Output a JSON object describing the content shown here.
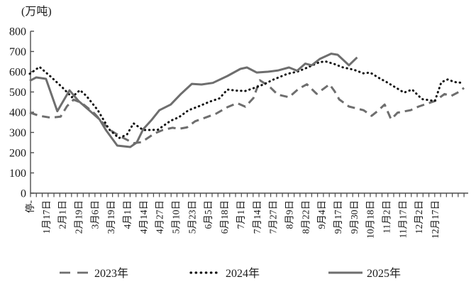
{
  "y_axis": {
    "title": "(万吨)",
    "ticks": [
      "0",
      "100",
      "200",
      "300",
      "400",
      "500",
      "600",
      "700",
      "800"
    ],
    "min": 0,
    "max": 800
  },
  "x_axis": {
    "labels": [
      "停-",
      "1月17日",
      "2月1日",
      "2月19日",
      "3月6日",
      "3月19日",
      "4月1日",
      "4月14日",
      "4月27日",
      "5月10日",
      "5月23日",
      "6月5日",
      "6月18日",
      "7月1日",
      "7月14日",
      "7月27日",
      "8月9日",
      "8月22日",
      "9月4日",
      "9月17日",
      "9月30日",
      "10月18日",
      "11月2日",
      "11月17日",
      "12月2日",
      "12月17日"
    ]
  },
  "legend": {
    "items": [
      {
        "label": "2023年",
        "style": "dashed",
        "color": "#6e6e6e"
      },
      {
        "label": "2024年",
        "style": "dotted",
        "color": "#111111"
      },
      {
        "label": "2025年",
        "style": "solid",
        "color": "#6e6e6e"
      }
    ]
  },
  "chart_data": {
    "type": "line",
    "title": "",
    "ylabel": "(万吨)",
    "ylim": [
      0,
      800
    ],
    "grid": false,
    "legend_position": "bottom",
    "x_unit": "category-index (fractional index between biweekly date labels)",
    "categories": [
      "停-",
      "1月17日",
      "2月1日",
      "2月19日",
      "3月6日",
      "3月19日",
      "4月1日",
      "4月14日",
      "4月27日",
      "5月10日",
      "5月23日",
      "6月5日",
      "6月18日",
      "7月1日",
      "7月14日",
      "7月27日",
      "8月9日",
      "8月22日",
      "9月4日",
      "9月17日",
      "9月30日",
      "10月18日",
      "11月2日",
      "11月17日",
      "12月2日",
      "12月17日"
    ],
    "series": [
      {
        "name": "2023年",
        "line": "dashed",
        "color": "#6e6e6e",
        "points": [
          [
            0,
            398
          ],
          [
            0.6,
            382
          ],
          [
            1.3,
            373
          ],
          [
            1.9,
            378
          ],
          [
            2.3,
            430
          ],
          [
            2.7,
            462
          ],
          [
            3.2,
            446
          ],
          [
            3.6,
            420
          ],
          [
            4,
            393
          ],
          [
            4.5,
            348
          ],
          [
            5,
            310
          ],
          [
            5.6,
            280
          ],
          [
            6.4,
            247
          ],
          [
            6.9,
            252
          ],
          [
            7.7,
            295
          ],
          [
            8.2,
            312
          ],
          [
            8.8,
            323
          ],
          [
            9.2,
            318
          ],
          [
            9.7,
            325
          ],
          [
            10.2,
            355
          ],
          [
            10.9,
            375
          ],
          [
            11.5,
            393
          ],
          [
            12.2,
            425
          ],
          [
            12.8,
            445
          ],
          [
            13.3,
            427
          ],
          [
            13.8,
            470
          ],
          [
            14.2,
            558
          ],
          [
            14.8,
            526
          ],
          [
            15.3,
            487
          ],
          [
            16,
            474
          ],
          [
            16.6,
            516
          ],
          [
            17.1,
            538
          ],
          [
            17.7,
            491
          ],
          [
            18.2,
            520
          ],
          [
            18.5,
            538
          ],
          [
            18.8,
            505
          ],
          [
            19.1,
            463
          ],
          [
            19.7,
            428
          ],
          [
            20.6,
            410
          ],
          [
            21.1,
            382
          ],
          [
            21.5,
            408
          ],
          [
            21.9,
            438
          ],
          [
            22.3,
            365
          ],
          [
            22.7,
            398
          ],
          [
            23.5,
            410
          ],
          [
            24,
            428
          ],
          [
            25,
            455
          ],
          [
            25.6,
            490
          ],
          [
            26,
            480
          ],
          [
            26.4,
            497
          ],
          [
            26.8,
            520
          ]
        ]
      },
      {
        "name": "2024年",
        "line": "dotted",
        "color": "#111111",
        "points": [
          [
            0,
            590
          ],
          [
            0.6,
            624
          ],
          [
            1.3,
            575
          ],
          [
            2,
            523
          ],
          [
            2.6,
            474
          ],
          [
            3.1,
            509
          ],
          [
            3.5,
            480
          ],
          [
            4.2,
            410
          ],
          [
            4.9,
            315
          ],
          [
            5.5,
            272
          ],
          [
            6,
            290
          ],
          [
            6.4,
            345
          ],
          [
            7,
            312
          ],
          [
            7.9,
            313
          ],
          [
            8.7,
            358
          ],
          [
            9.2,
            375
          ],
          [
            9.8,
            410
          ],
          [
            10.4,
            428
          ],
          [
            11.1,
            452
          ],
          [
            11.7,
            468
          ],
          [
            12.2,
            512
          ],
          [
            12.7,
            507
          ],
          [
            13.3,
            505
          ],
          [
            14,
            524
          ],
          [
            14.5,
            540
          ],
          [
            15,
            560
          ],
          [
            15.9,
            590
          ],
          [
            16.5,
            600
          ],
          [
            17,
            616
          ],
          [
            17.9,
            648
          ],
          [
            18.3,
            650
          ],
          [
            18.8,
            638
          ],
          [
            19.3,
            622
          ],
          [
            20,
            610
          ],
          [
            20.6,
            592
          ],
          [
            21,
            596
          ],
          [
            21.6,
            567
          ],
          [
            22,
            550
          ],
          [
            22.7,
            516
          ],
          [
            23.1,
            497
          ],
          [
            23.6,
            512
          ],
          [
            24.2,
            465
          ],
          [
            25,
            455
          ],
          [
            25.4,
            548
          ],
          [
            25.8,
            562
          ],
          [
            26.2,
            549
          ],
          [
            26.7,
            545
          ]
        ]
      },
      {
        "name": "2025年",
        "line": "solid",
        "color": "#6e6e6e",
        "points": [
          [
            0,
            555
          ],
          [
            0.4,
            572
          ],
          [
            1,
            565
          ],
          [
            1.7,
            405
          ],
          [
            2.45,
            508
          ],
          [
            3,
            456
          ],
          [
            3.8,
            400
          ],
          [
            4.3,
            365
          ],
          [
            4.7,
            312
          ],
          [
            5.4,
            235
          ],
          [
            6.2,
            228
          ],
          [
            6.6,
            250
          ],
          [
            7,
            316
          ],
          [
            7.5,
            360
          ],
          [
            8,
            410
          ],
          [
            8.7,
            438
          ],
          [
            9.3,
            488
          ],
          [
            10,
            540
          ],
          [
            10.6,
            537
          ],
          [
            11.3,
            545
          ],
          [
            12.2,
            579
          ],
          [
            13,
            614
          ],
          [
            13.4,
            621
          ],
          [
            14,
            596
          ],
          [
            14.7,
            600
          ],
          [
            15.3,
            606
          ],
          [
            16,
            621
          ],
          [
            16.5,
            605
          ],
          [
            17,
            640
          ],
          [
            17.4,
            632
          ],
          [
            17.9,
            663
          ],
          [
            18.6,
            689
          ],
          [
            19,
            684
          ],
          [
            19.7,
            632
          ],
          [
            20.2,
            671
          ]
        ]
      }
    ]
  }
}
